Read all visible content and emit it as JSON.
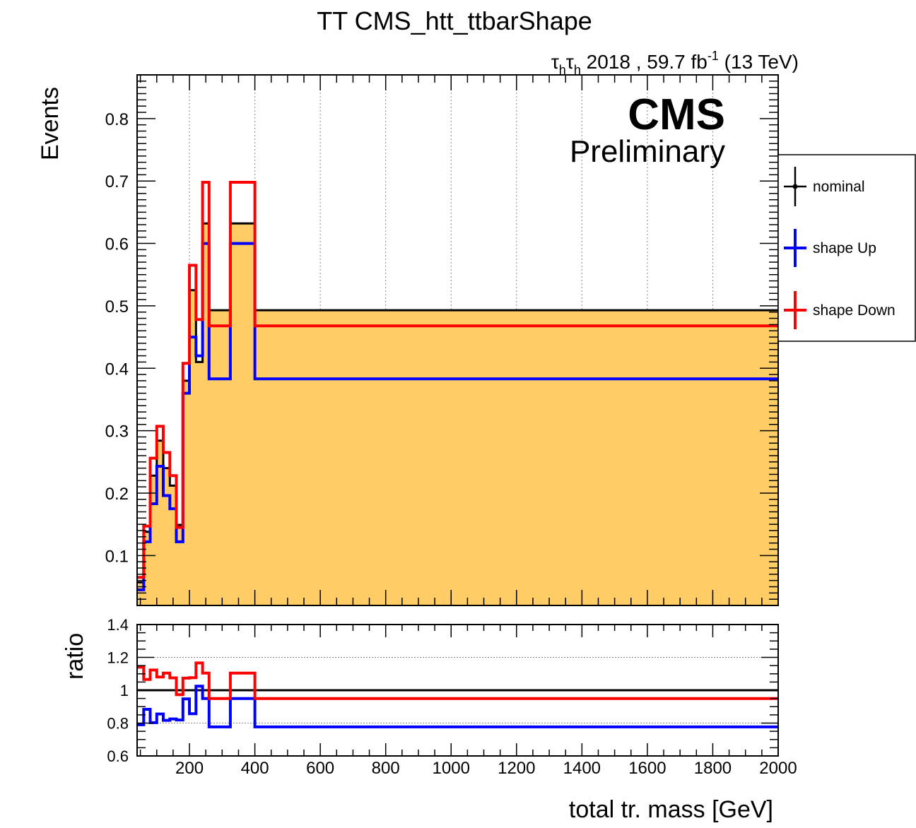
{
  "title": "TT CMS_htt_ttbarShape",
  "lumi": {
    "tau": "τ",
    "sub": "h",
    "text": " 2018 , 59.7 fb",
    "exp": "-1",
    "energy": " (13 TeV)"
  },
  "cms_label": "CMS",
  "cms_sublabel": "Preliminary",
  "colors": {
    "fill": "#ffcc66",
    "nominal": "#000000",
    "up": "#0000ff",
    "down": "#ff0000"
  },
  "chart_data": {
    "type": "line",
    "main": {
      "ylabel": "Events",
      "ylim": [
        0.02,
        0.87
      ],
      "yticks": [
        "0.1",
        "0.2",
        "0.3",
        "0.4",
        "0.5",
        "0.6",
        "0.7",
        "0.8"
      ],
      "grid_x": true
    },
    "ratio": {
      "ylabel": "ratio",
      "ylim": [
        0.6,
        1.4
      ],
      "yticks": [
        "0.6",
        "0.8",
        "1",
        "1.2",
        "1.4"
      ]
    },
    "xlabel": "total tr. mass [GeV]",
    "xlim": [
      40,
      2000
    ],
    "xticks": [
      "200",
      "400",
      "600",
      "800",
      "1000",
      "1200",
      "1400",
      "1600",
      "1800",
      "2000"
    ],
    "bin_edges": [
      40,
      60,
      80,
      100,
      120,
      140,
      160,
      180,
      200,
      220,
      240,
      260,
      280,
      300,
      325,
      400,
      2000
    ],
    "series": [
      {
        "name": "nominal",
        "values": [
          0.057,
          0.138,
          0.228,
          0.284,
          0.24,
          0.212,
          0.149,
          0.38,
          0.525,
          0.41,
          0.632,
          0.493,
          0.493,
          0.493,
          0.632,
          0.493
        ]
      },
      {
        "name": "shape Up",
        "values": [
          0.045,
          0.122,
          0.183,
          0.243,
          0.196,
          0.175,
          0.122,
          0.36,
          0.45,
          0.42,
          0.6,
          0.383,
          0.383,
          0.383,
          0.6,
          0.383
        ]
      },
      {
        "name": "shape Down",
        "values": [
          0.065,
          0.147,
          0.256,
          0.307,
          0.265,
          0.228,
          0.145,
          0.408,
          0.565,
          0.478,
          0.698,
          0.468,
          0.468,
          0.468,
          0.698,
          0.468
        ]
      }
    ],
    "legend": {
      "position": "right",
      "entries": [
        "nominal",
        "shape Up",
        "shape Down"
      ]
    }
  }
}
